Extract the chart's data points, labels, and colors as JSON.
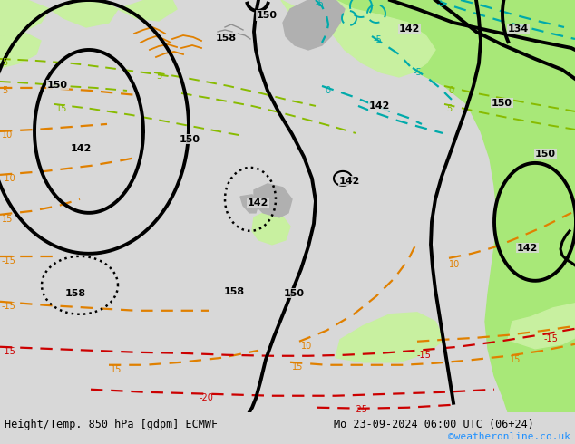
{
  "title_left": "Height/Temp. 850 hPa [gdpm] ECMWF",
  "title_right": "Mo 23-09-2024 06:00 UTC (06+24)",
  "credit": "©weatheronline.co.uk",
  "credit_color": "#1e90ff",
  "bg_color": "#d8d8d8",
  "land_color": "#b8b8b8",
  "green_light": "#c8f0a0",
  "green_mid": "#a8e878",
  "orange_isotherm": "#e08000",
  "red_isotherm": "#cc0000",
  "cyan_isotherm": "#00aaaa",
  "green_isotherm": "#88bb00",
  "black_contour": "#000000"
}
